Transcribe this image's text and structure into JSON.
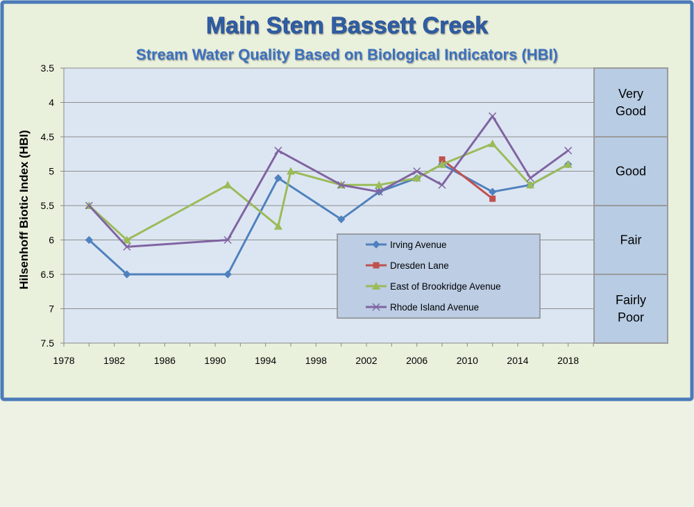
{
  "chart_data": {
    "type": "line",
    "title": "Main Stem Bassett Creek",
    "subtitle": "Stream Water Quality Based on Biological Indicators (HBI)",
    "ylabel": "Hilsenhoff Biotic Index (HBI)",
    "xlabel": "",
    "xlim": [
      1978,
      2020
    ],
    "ylim": [
      3.5,
      7.5
    ],
    "y_reversed": true,
    "grid": true,
    "legend_position": "center-right",
    "x_ticks": [
      "1978",
      "1982",
      "1986",
      "1990",
      "1994",
      "1998",
      "2002",
      "2006",
      "2010",
      "2014",
      "2018"
    ],
    "y_ticks": [
      "3.5",
      "4",
      "4.5",
      "5",
      "5.5",
      "6",
      "6.5",
      "7",
      "7.5"
    ],
    "bands": [
      {
        "label": "Very Good",
        "from": 3.5,
        "to": 4.5
      },
      {
        "label": "Good",
        "from": 4.5,
        "to": 5.5
      },
      {
        "label": "Fair",
        "from": 5.5,
        "to": 6.5
      },
      {
        "label": "Fairly Poor",
        "from": 6.5,
        "to": 7.5
      }
    ],
    "series": [
      {
        "name": "Irving Avenue",
        "color": "#4f81bd",
        "marker": "diamond",
        "points": [
          [
            1980,
            6.0
          ],
          [
            1983,
            6.5
          ],
          [
            1991,
            6.5
          ],
          [
            1995,
            5.1
          ],
          [
            2000,
            5.7
          ],
          [
            2003,
            5.3
          ],
          [
            2006,
            5.1
          ],
          [
            2008,
            4.9
          ],
          [
            2012,
            5.3
          ],
          [
            2015,
            5.2
          ],
          [
            2018,
            4.9
          ]
        ]
      },
      {
        "name": "Dresden Lane",
        "color": "#c0504d",
        "marker": "square",
        "points": [
          [
            2008,
            4.83
          ],
          [
            2012,
            5.4
          ]
        ]
      },
      {
        "name": "East of Brookridge Avenue",
        "color": "#9bbb59",
        "marker": "triangle",
        "points": [
          [
            1980,
            5.5
          ],
          [
            1983,
            6.0
          ],
          [
            1991,
            5.2
          ],
          [
            1995,
            5.8
          ],
          [
            1996,
            5.0
          ],
          [
            2000,
            5.2
          ],
          [
            2003,
            5.2
          ],
          [
            2006,
            5.1
          ],
          [
            2008,
            4.9
          ],
          [
            2012,
            4.6
          ],
          [
            2015,
            5.2
          ],
          [
            2018,
            4.9
          ]
        ]
      },
      {
        "name": "Rhode Island Avenue",
        "color": "#8064a2",
        "marker": "x",
        "points": [
          [
            1980,
            5.5
          ],
          [
            1983,
            6.1
          ],
          [
            1991,
            6.0
          ],
          [
            1995,
            4.7
          ],
          [
            2000,
            5.2
          ],
          [
            2003,
            5.3
          ],
          [
            2006,
            5.0
          ],
          [
            2008,
            5.2
          ],
          [
            2012,
            4.2
          ],
          [
            2015,
            5.1
          ],
          [
            2018,
            4.7
          ]
        ]
      }
    ]
  }
}
